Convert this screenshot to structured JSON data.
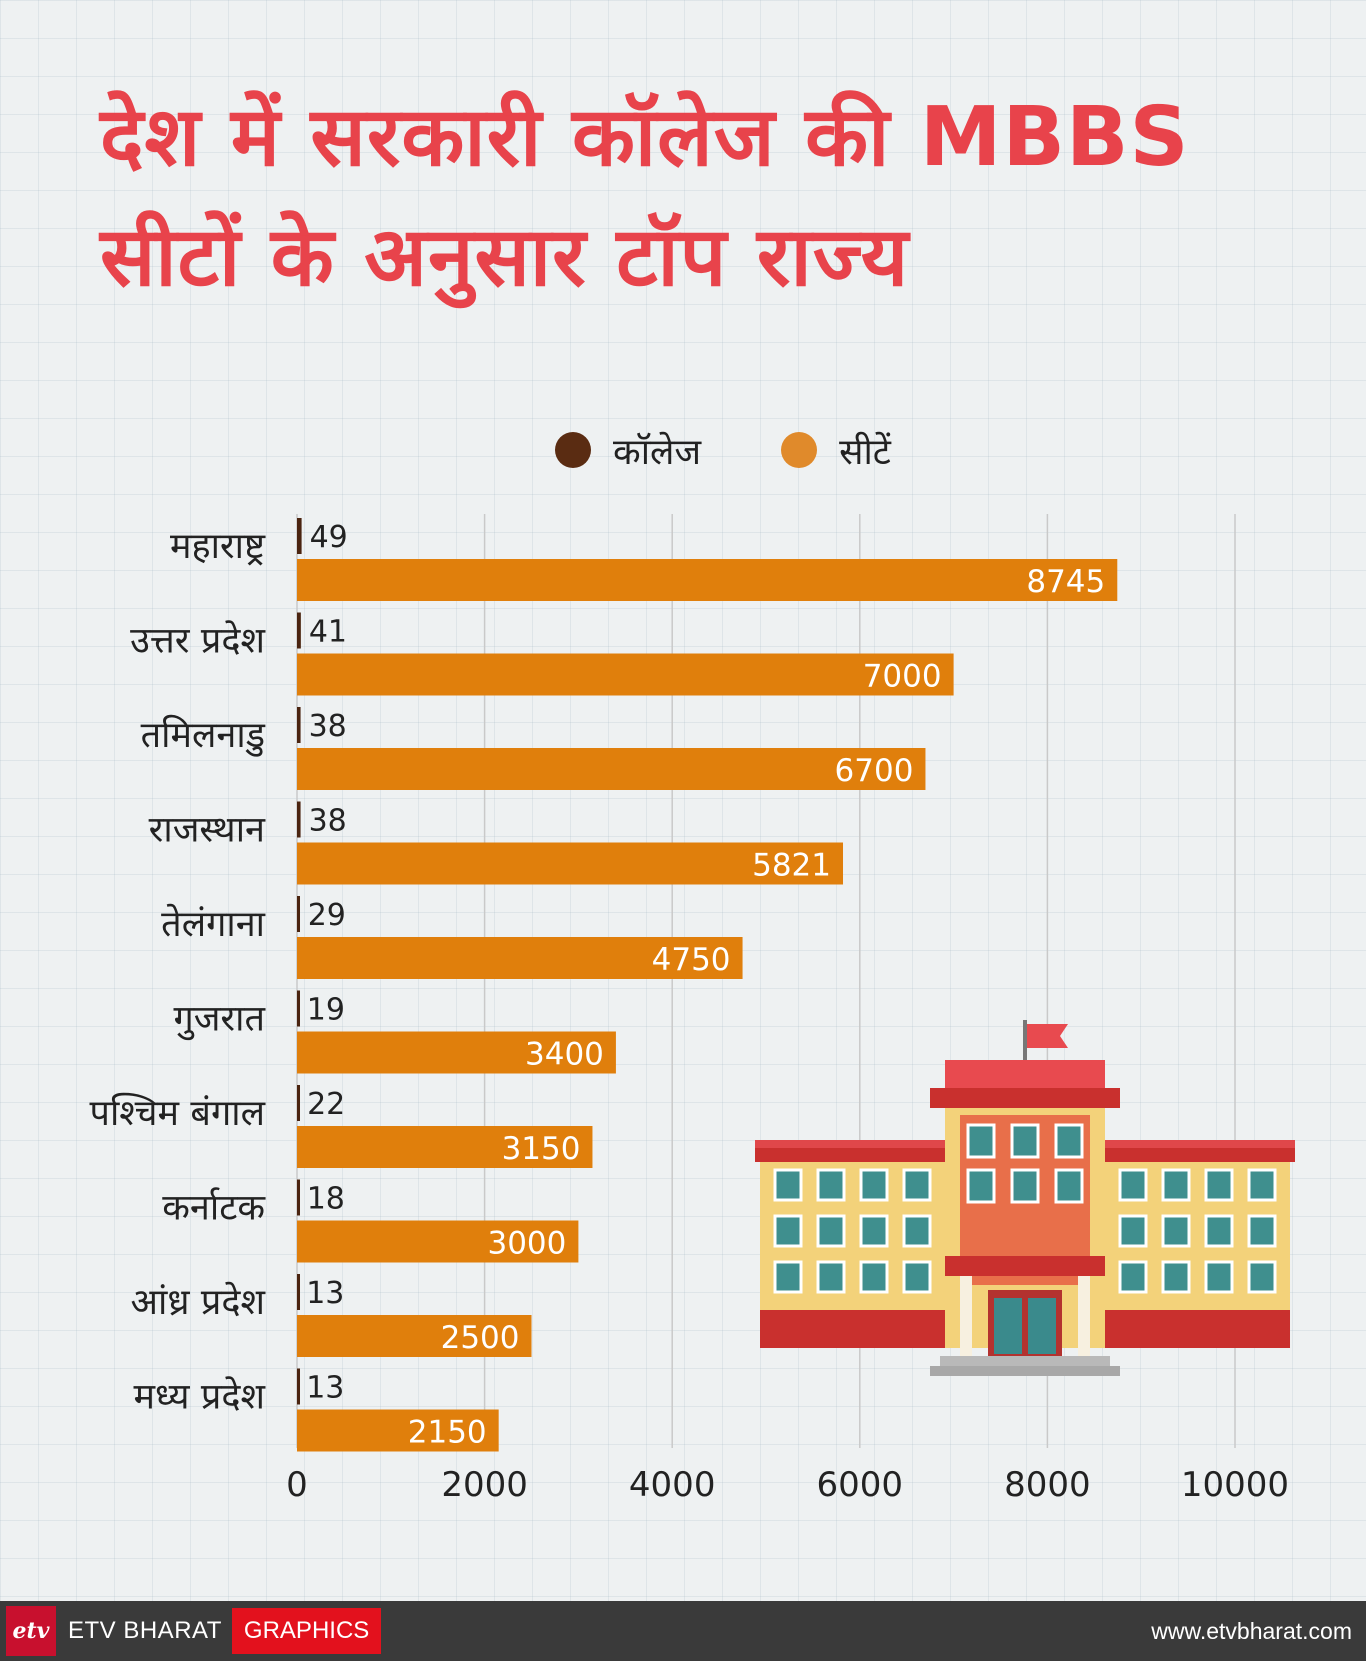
{
  "title": {
    "line1": "देश में सरकारी कॉलेज की MBBS",
    "line2": "सीटों के अनुसार टॉप राज्य"
  },
  "legend": [
    {
      "label": "कॉलेज",
      "color": "#5a2c12"
    },
    {
      "label": "सीटें",
      "color": "#e08a2b"
    }
  ],
  "colors": {
    "colleges_bar": "#4a2410",
    "seats_bar": "#e07f0c",
    "title": "#e8434b"
  },
  "chart_data": {
    "type": "bar",
    "orientation": "horizontal",
    "categories": [
      "महाराष्ट्र",
      "उत्तर प्रदेश",
      "तमिलनाडु",
      "राजस्थान",
      "तेलंगाना",
      "गुजरात",
      "पश्चिम बंगाल",
      "कर्नाटक",
      "आंध्र प्रदेश",
      "मध्य प्रदेश"
    ],
    "series": [
      {
        "name": "कॉलेज",
        "values": [
          49,
          41,
          38,
          38,
          29,
          19,
          22,
          18,
          13,
          13
        ]
      },
      {
        "name": "सीटें",
        "values": [
          8745,
          7000,
          6700,
          5821,
          4750,
          3400,
          3150,
          3000,
          2500,
          2150
        ]
      }
    ],
    "x_ticks": [
      "0",
      "2000",
      "4000",
      "6000",
      "8000",
      "10000"
    ],
    "xlim": [
      0,
      10000
    ],
    "grid": "vertical",
    "legend_position": "top-center"
  },
  "footer": {
    "logo": "etv",
    "brand": "ETV BHARAT",
    "tag": "GRAPHICS",
    "website": "www.etvbharat.com"
  }
}
